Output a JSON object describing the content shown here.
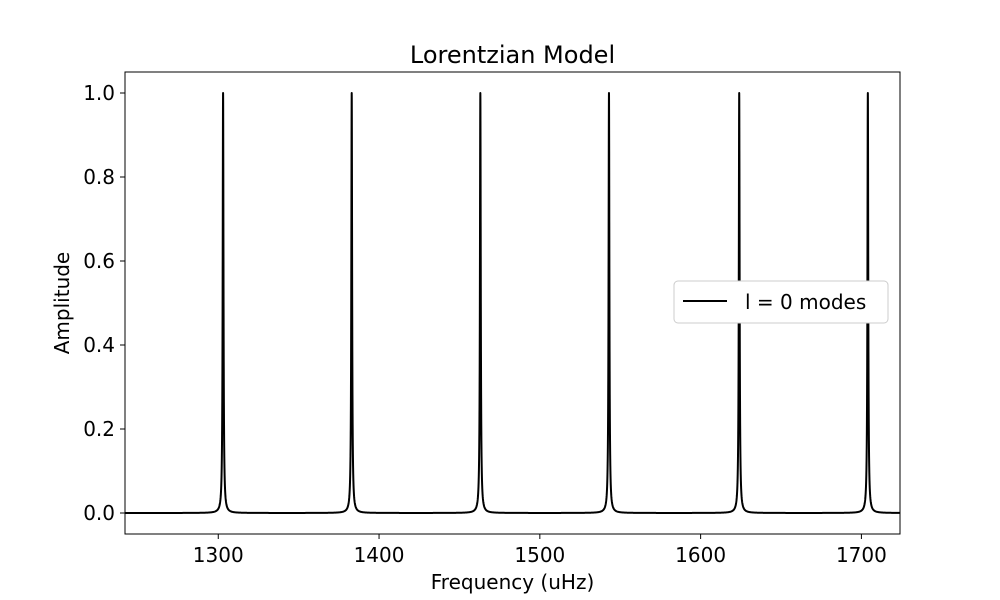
{
  "chart_data": {
    "type": "line",
    "title": "Lorentzian Model",
    "xlabel": "Frequency (uHz)",
    "ylabel": "Amplitude",
    "xlim": [
      1242,
      1724
    ],
    "ylim": [
      -0.05,
      1.05
    ],
    "xticks": [
      1300,
      1400,
      1500,
      1600,
      1700
    ],
    "yticks": [
      0.0,
      0.2,
      0.4,
      0.6,
      0.8,
      1.0
    ],
    "xtick_labels": [
      "1300",
      "1400",
      "1500",
      "1600",
      "1700"
    ],
    "ytick_labels": [
      "0.0",
      "0.2",
      "0.4",
      "0.6",
      "0.8",
      "1.0"
    ],
    "grid": false,
    "legend": {
      "placement": "center-right",
      "entries": [
        "l = 0 modes"
      ]
    },
    "series": [
      {
        "name": "l = 0 modes",
        "color": "#000000",
        "peak_centers": [
          1303,
          1383,
          1463,
          1543,
          1624,
          1704
        ],
        "peak_amplitude": 1.0,
        "peak_halfwidth": 0.3
      }
    ]
  }
}
